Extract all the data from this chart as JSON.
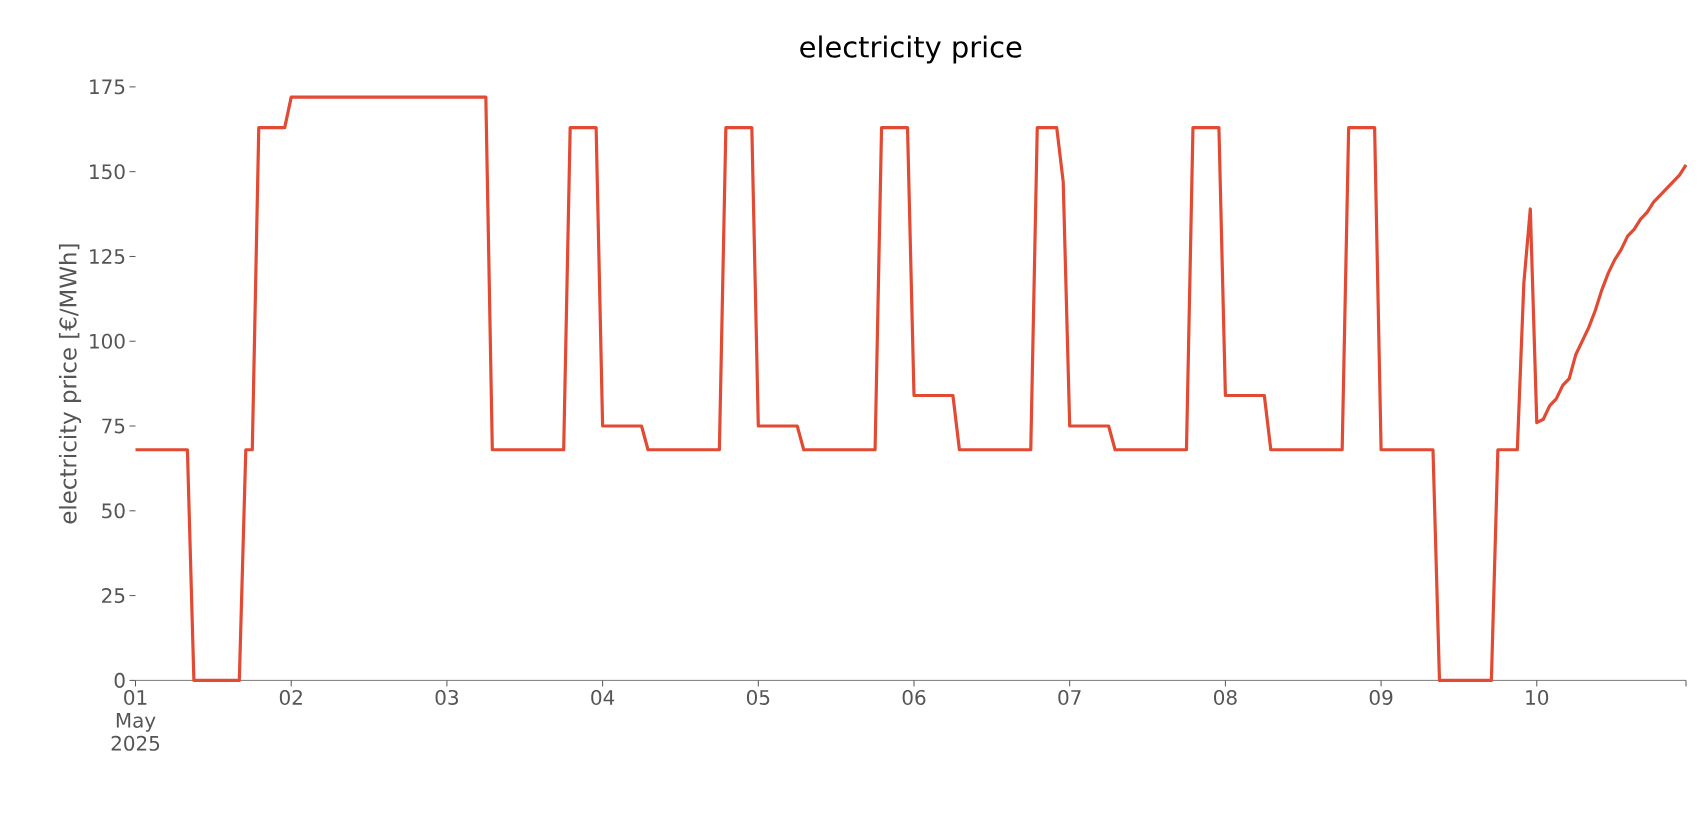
{
  "chart_data": {
    "type": "line",
    "title": "electricity price",
    "ylabel": "electricity price [€/MWh]",
    "color": "#e24a33",
    "xlim": [
      "2025-05-01T00:00",
      "2025-05-10T23:00"
    ],
    "ylim": [
      0,
      175
    ],
    "yticks": [
      0,
      25,
      50,
      75,
      100,
      125,
      150,
      175
    ],
    "xticks": [
      {
        "value": "2025-05-01T00:00",
        "label": "01 May 2025"
      },
      {
        "value": "2025-05-02T00:00",
        "label": "02"
      },
      {
        "value": "2025-05-03T00:00",
        "label": "03"
      },
      {
        "value": "2025-05-04T00:00",
        "label": "04"
      },
      {
        "value": "2025-05-05T00:00",
        "label": "05"
      },
      {
        "value": "2025-05-06T00:00",
        "label": "06"
      },
      {
        "value": "2025-05-07T00:00",
        "label": "07"
      },
      {
        "value": "2025-05-08T00:00",
        "label": "08"
      },
      {
        "value": "2025-05-09T00:00",
        "label": "09"
      },
      {
        "value": "2025-05-10T00:00",
        "label": "10"
      },
      {
        "value": "2025-05-10T23:00",
        "label": null
      }
    ],
    "x": [
      "2025-05-01T00:00",
      "2025-05-01T08:00",
      "2025-05-01T09:00",
      "2025-05-01T16:00",
      "2025-05-01T17:00",
      "2025-05-01T18:00",
      "2025-05-01T19:00",
      "2025-05-01T23:00",
      "2025-05-02T00:00",
      "2025-05-03T06:00",
      "2025-05-03T07:00",
      "2025-05-03T18:00",
      "2025-05-03T19:00",
      "2025-05-03T23:00",
      "2025-05-04T00:00",
      "2025-05-04T06:00",
      "2025-05-04T07:00",
      "2025-05-04T18:00",
      "2025-05-04T19:00",
      "2025-05-04T23:00",
      "2025-05-05T00:00",
      "2025-05-05T06:00",
      "2025-05-05T07:00",
      "2025-05-05T18:00",
      "2025-05-05T19:00",
      "2025-05-05T23:00",
      "2025-05-06T00:00",
      "2025-05-06T06:00",
      "2025-05-06T07:00",
      "2025-05-06T18:00",
      "2025-05-06T19:00",
      "2025-05-06T22:00",
      "2025-05-06T23:00",
      "2025-05-07T00:00",
      "2025-05-07T06:00",
      "2025-05-07T07:00",
      "2025-05-07T18:00",
      "2025-05-07T19:00",
      "2025-05-07T23:00",
      "2025-05-08T00:00",
      "2025-05-08T06:00",
      "2025-05-08T07:00",
      "2025-05-08T18:00",
      "2025-05-08T19:00",
      "2025-05-08T23:00",
      "2025-05-09T00:00",
      "2025-05-09T08:00",
      "2025-05-09T09:00",
      "2025-05-09T17:00",
      "2025-05-09T18:00",
      "2025-05-09T21:00",
      "2025-05-09T22:00",
      "2025-05-09T23:00",
      "2025-05-10T00:00",
      "2025-05-10T01:00",
      "2025-05-10T02:00",
      "2025-05-10T03:00",
      "2025-05-10T04:00",
      "2025-05-10T05:00",
      "2025-05-10T06:00",
      "2025-05-10T07:00",
      "2025-05-10T08:00",
      "2025-05-10T09:00",
      "2025-05-10T10:00",
      "2025-05-10T11:00",
      "2025-05-10T12:00",
      "2025-05-10T13:00",
      "2025-05-10T14:00",
      "2025-05-10T15:00",
      "2025-05-10T16:00",
      "2025-05-10T17:00",
      "2025-05-10T18:00",
      "2025-05-10T19:00",
      "2025-05-10T20:00",
      "2025-05-10T21:00",
      "2025-05-10T22:00",
      "2025-05-10T23:00"
    ],
    "values": [
      68,
      68,
      0,
      0,
      68,
      68,
      163,
      163,
      172,
      172,
      68,
      68,
      163,
      163,
      75,
      75,
      68,
      68,
      163,
      163,
      75,
      75,
      68,
      68,
      163,
      163,
      84,
      84,
      68,
      68,
      163,
      163,
      147,
      75,
      75,
      68,
      68,
      163,
      163,
      84,
      84,
      68,
      68,
      163,
      163,
      68,
      68,
      0,
      0,
      68,
      68,
      117,
      139,
      76,
      77,
      81,
      83,
      87,
      89,
      96,
      100,
      104,
      109,
      115,
      120,
      124,
      127,
      131,
      133,
      136,
      138,
      141,
      143,
      145,
      147,
      149,
      152
    ]
  }
}
